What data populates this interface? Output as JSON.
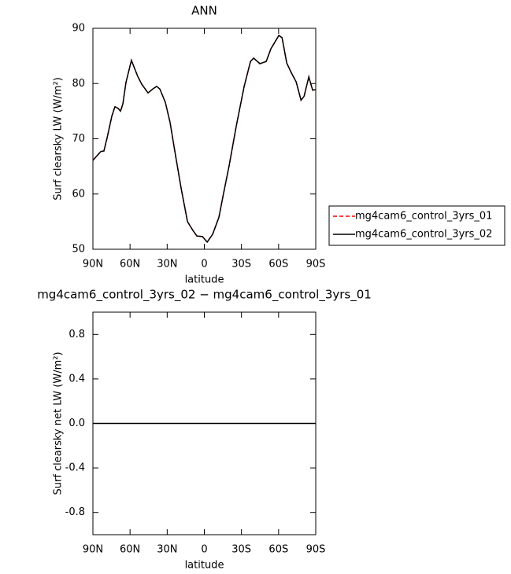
{
  "chart_data": [
    {
      "type": "line",
      "title": "ANN",
      "xlabel": "latitude",
      "ylabel": "Surf clearsky LW (W/m²)",
      "x": [
        90,
        83.6,
        81.1,
        78.5,
        74.7,
        72.2,
        69.6,
        67.7,
        65.8,
        63.3,
        58.9,
        53.8,
        50.6,
        45.5,
        41.7,
        38.5,
        35.9,
        31.5,
        27.7,
        23.8,
        18.7,
        13.6,
        9.2,
        6.0,
        1.5,
        -2.3,
        -6.7,
        -11.8,
        -15.0,
        -20.1,
        -25.8,
        -32.2,
        -37.3,
        -39.8,
        -44.9,
        -50.0,
        -53.8,
        -60.2,
        -62.8,
        -66.6,
        -70.4,
        -74.2,
        -78.1,
        -80.6,
        -84.4,
        -87.5,
        -90
      ],
      "series": [
        {
          "name": "mg4cam6_control_3yrs_01",
          "color": "#ff0000",
          "dash": true,
          "values": [
            66.1,
            67.7,
            67.8,
            70.2,
            74.1,
            75.8,
            75.5,
            75.0,
            76.3,
            80.2,
            84.2,
            81.3,
            79.9,
            78.3,
            79.0,
            79.5,
            79.0,
            76.6,
            73.0,
            67.7,
            61.0,
            55.0,
            53.4,
            52.4,
            52.3,
            51.3,
            52.7,
            55.8,
            59.5,
            65.2,
            72.3,
            79.5,
            84.0,
            84.6,
            83.6,
            84.0,
            86.3,
            88.7,
            88.3,
            83.7,
            81.9,
            80.3,
            77.0,
            77.7,
            81.2,
            78.8,
            78.9
          ]
        },
        {
          "name": "mg4cam6_control_3yrs_02",
          "color": "#000000",
          "dash": false,
          "values": [
            66.1,
            67.7,
            67.8,
            70.2,
            74.1,
            75.8,
            75.5,
            75.0,
            76.3,
            80.2,
            84.2,
            81.3,
            79.9,
            78.3,
            79.0,
            79.5,
            79.0,
            76.6,
            73.0,
            67.7,
            61.0,
            55.0,
            53.4,
            52.4,
            52.3,
            51.3,
            52.7,
            55.8,
            59.5,
            65.2,
            72.3,
            79.5,
            84.0,
            84.6,
            83.6,
            84.0,
            86.3,
            88.7,
            88.3,
            83.7,
            81.9,
            80.3,
            77.0,
            77.7,
            81.2,
            78.8,
            78.9
          ]
        }
      ],
      "xlim": [
        90,
        -90
      ],
      "xticks": [
        {
          "value": 90,
          "label": "90N"
        },
        {
          "value": 60,
          "label": "60N"
        },
        {
          "value": 30,
          "label": "30N"
        },
        0,
        {
          "value": -30,
          "label": "30S"
        },
        {
          "value": -60,
          "label": "60S"
        },
        {
          "value": -90,
          "label": "90S"
        }
      ],
      "ylim": [
        50,
        90
      ],
      "yticks": [
        50,
        60,
        70,
        80,
        90
      ],
      "legend": "right"
    },
    {
      "type": "line",
      "title": "mg4cam6_control_3yrs_02 − mg4cam6_control_3yrs_01",
      "xlabel": "latitude",
      "ylabel": "Surf clearsky net LW (W/m²)",
      "x": [
        90,
        -90
      ],
      "series": [
        {
          "color": "#000000",
          "dash": false,
          "values": [
            0,
            0
          ]
        }
      ],
      "xlim": [
        90,
        -90
      ],
      "xticks": [
        {
          "value": 90,
          "label": "90N"
        },
        {
          "value": 60,
          "label": "60N"
        },
        {
          "value": 30,
          "label": "30N"
        },
        0,
        {
          "value": -30,
          "label": "30S"
        },
        {
          "value": -60,
          "label": "60S"
        },
        {
          "value": -90,
          "label": "90S"
        }
      ],
      "ylim": [
        -1,
        1
      ],
      "yticks": [
        -0.8,
        -0.4,
        {
          "value": 0,
          "label": "0.0"
        },
        0.4,
        0.8
      ]
    }
  ]
}
